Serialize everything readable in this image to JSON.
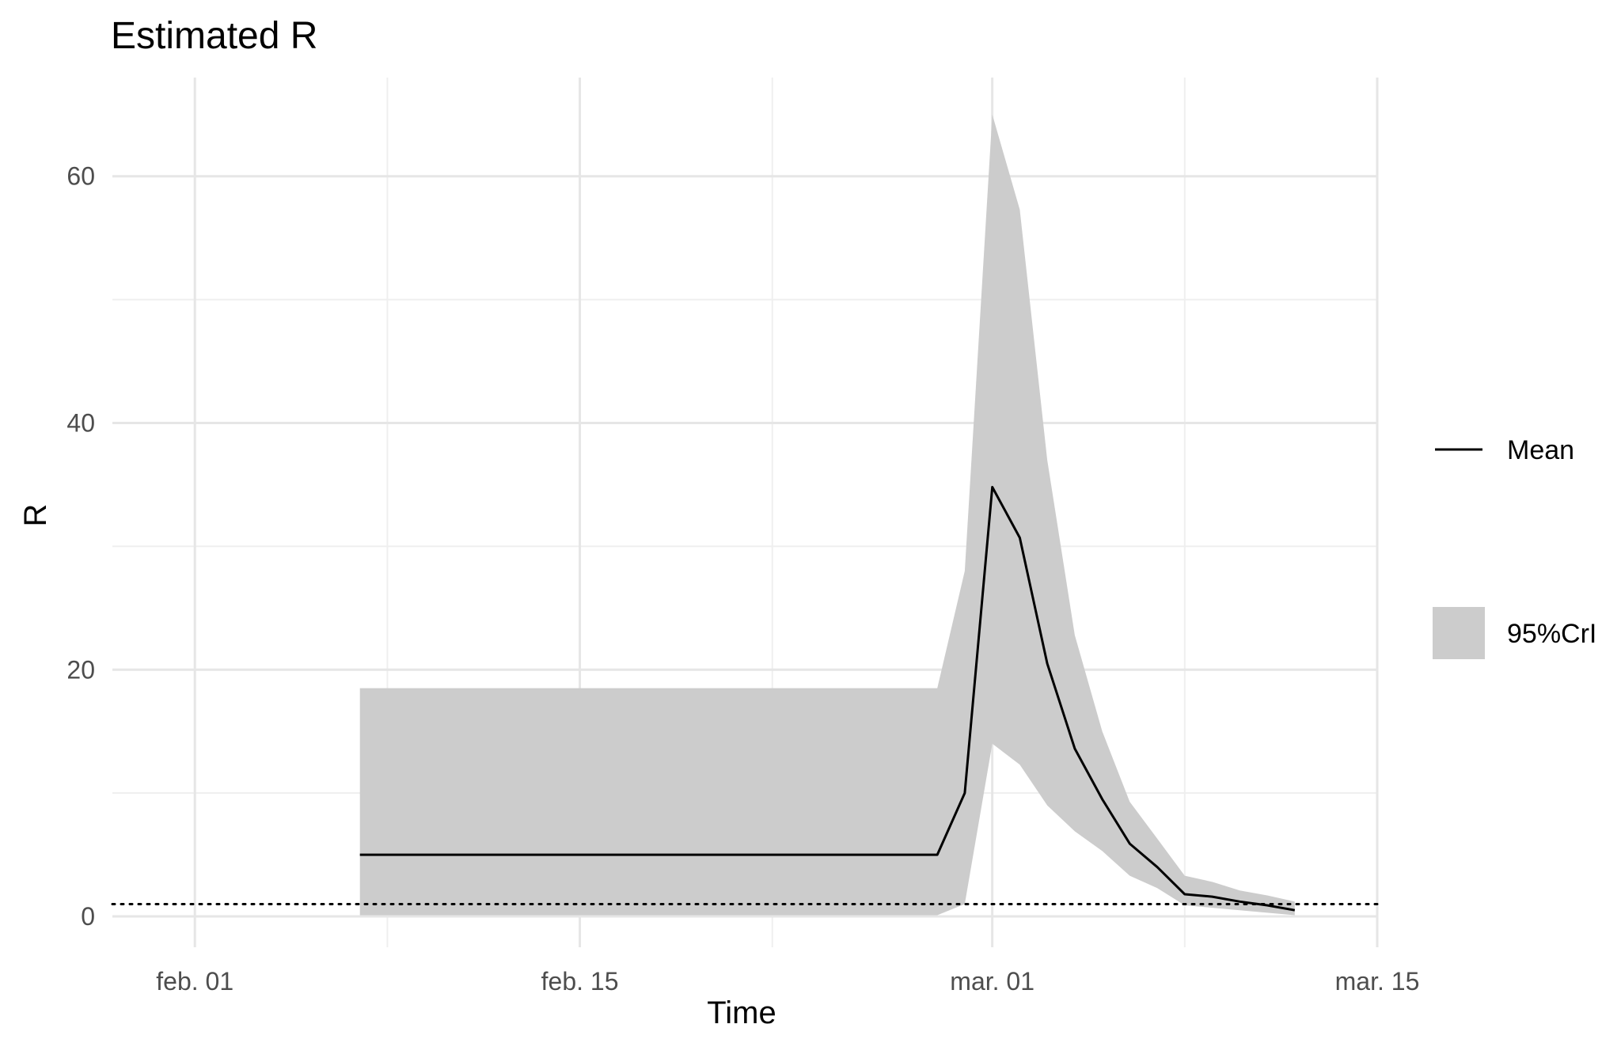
{
  "chart_data": {
    "type": "line",
    "title": "Estimated R",
    "xlabel": "Time",
    "ylabel": "R",
    "x_axis": {
      "type": "date",
      "range": [
        "2020-01-29",
        "2020-03-15"
      ],
      "ticks": [
        {
          "date": "2020-02-01",
          "label": "feb. 01"
        },
        {
          "date": "2020-02-15",
          "label": "feb. 15"
        },
        {
          "date": "2020-03-01",
          "label": "mar. 01"
        },
        {
          "date": "2020-03-15",
          "label": "mar. 15"
        }
      ],
      "minor_ticks": [
        "2020-02-08",
        "2020-02-22",
        "2020-03-08"
      ]
    },
    "y_axis": {
      "range": [
        -2.5,
        68
      ],
      "ticks": [
        0,
        20,
        40,
        60
      ],
      "minor_ticks": [
        10,
        30,
        50
      ]
    },
    "grid": true,
    "legend": {
      "position": "right",
      "items": [
        {
          "label": "Mean",
          "kind": "line",
          "color": "#000000"
        },
        {
          "label": "95%CrI",
          "kind": "ribbon",
          "color": "#cccccc"
        }
      ]
    },
    "reference_line": {
      "y": 1,
      "style": "dotted",
      "color": "#000000"
    },
    "series": [
      {
        "name": "Mean",
        "points": [
          {
            "x": "2020-02-07",
            "y": 5.0
          },
          {
            "x": "2020-02-08",
            "y": 5.0
          },
          {
            "x": "2020-02-09",
            "y": 5.0
          },
          {
            "x": "2020-02-10",
            "y": 5.0
          },
          {
            "x": "2020-02-11",
            "y": 5.0
          },
          {
            "x": "2020-02-12",
            "y": 5.0
          },
          {
            "x": "2020-02-13",
            "y": 5.0
          },
          {
            "x": "2020-02-14",
            "y": 5.0
          },
          {
            "x": "2020-02-15",
            "y": 5.0
          },
          {
            "x": "2020-02-16",
            "y": 5.0
          },
          {
            "x": "2020-02-17",
            "y": 5.0
          },
          {
            "x": "2020-02-18",
            "y": 5.0
          },
          {
            "x": "2020-02-19",
            "y": 5.0
          },
          {
            "x": "2020-02-20",
            "y": 5.0
          },
          {
            "x": "2020-02-21",
            "y": 5.0
          },
          {
            "x": "2020-02-22",
            "y": 5.0
          },
          {
            "x": "2020-02-23",
            "y": 5.0
          },
          {
            "x": "2020-02-24",
            "y": 5.0
          },
          {
            "x": "2020-02-25",
            "y": 5.0
          },
          {
            "x": "2020-02-26",
            "y": 5.0
          },
          {
            "x": "2020-02-27",
            "y": 5.0
          },
          {
            "x": "2020-02-28",
            "y": 5.0
          },
          {
            "x": "2020-02-29",
            "y": 10.0
          },
          {
            "x": "2020-03-01",
            "y": 34.8
          },
          {
            "x": "2020-03-02",
            "y": 30.7
          },
          {
            "x": "2020-03-03",
            "y": 20.5
          },
          {
            "x": "2020-03-04",
            "y": 13.6
          },
          {
            "x": "2020-03-05",
            "y": 9.5
          },
          {
            "x": "2020-03-06",
            "y": 5.9
          },
          {
            "x": "2020-03-07",
            "y": 4.0
          },
          {
            "x": "2020-03-08",
            "y": 1.8
          },
          {
            "x": "2020-03-09",
            "y": 1.6
          },
          {
            "x": "2020-03-10",
            "y": 1.2
          },
          {
            "x": "2020-03-11",
            "y": 0.9
          },
          {
            "x": "2020-03-12",
            "y": 0.5
          }
        ]
      }
    ],
    "ribbon": {
      "name": "95%CrI",
      "points": [
        {
          "x": "2020-02-07",
          "lower": 0.1,
          "upper": 18.5
        },
        {
          "x": "2020-02-28",
          "lower": 0.1,
          "upper": 18.5
        },
        {
          "x": "2020-02-29",
          "lower": 1.0,
          "upper": 28.0
        },
        {
          "x": "2020-03-01",
          "lower": 14.0,
          "upper": 65.0
        },
        {
          "x": "2020-03-02",
          "lower": 12.3,
          "upper": 57.3
        },
        {
          "x": "2020-03-03",
          "lower": 9.0,
          "upper": 37.0
        },
        {
          "x": "2020-03-04",
          "lower": 6.9,
          "upper": 22.8
        },
        {
          "x": "2020-03-05",
          "lower": 5.3,
          "upper": 15.0
        },
        {
          "x": "2020-03-06",
          "lower": 3.3,
          "upper": 9.3
        },
        {
          "x": "2020-03-07",
          "lower": 2.3,
          "upper": 6.3
        },
        {
          "x": "2020-03-08",
          "lower": 0.9,
          "upper": 3.3
        },
        {
          "x": "2020-03-09",
          "lower": 0.7,
          "upper": 2.8
        },
        {
          "x": "2020-03-10",
          "lower": 0.5,
          "upper": 2.1
        },
        {
          "x": "2020-03-11",
          "lower": 0.3,
          "upper": 1.7
        },
        {
          "x": "2020-03-12",
          "lower": 0.1,
          "upper": 1.2
        }
      ]
    }
  }
}
